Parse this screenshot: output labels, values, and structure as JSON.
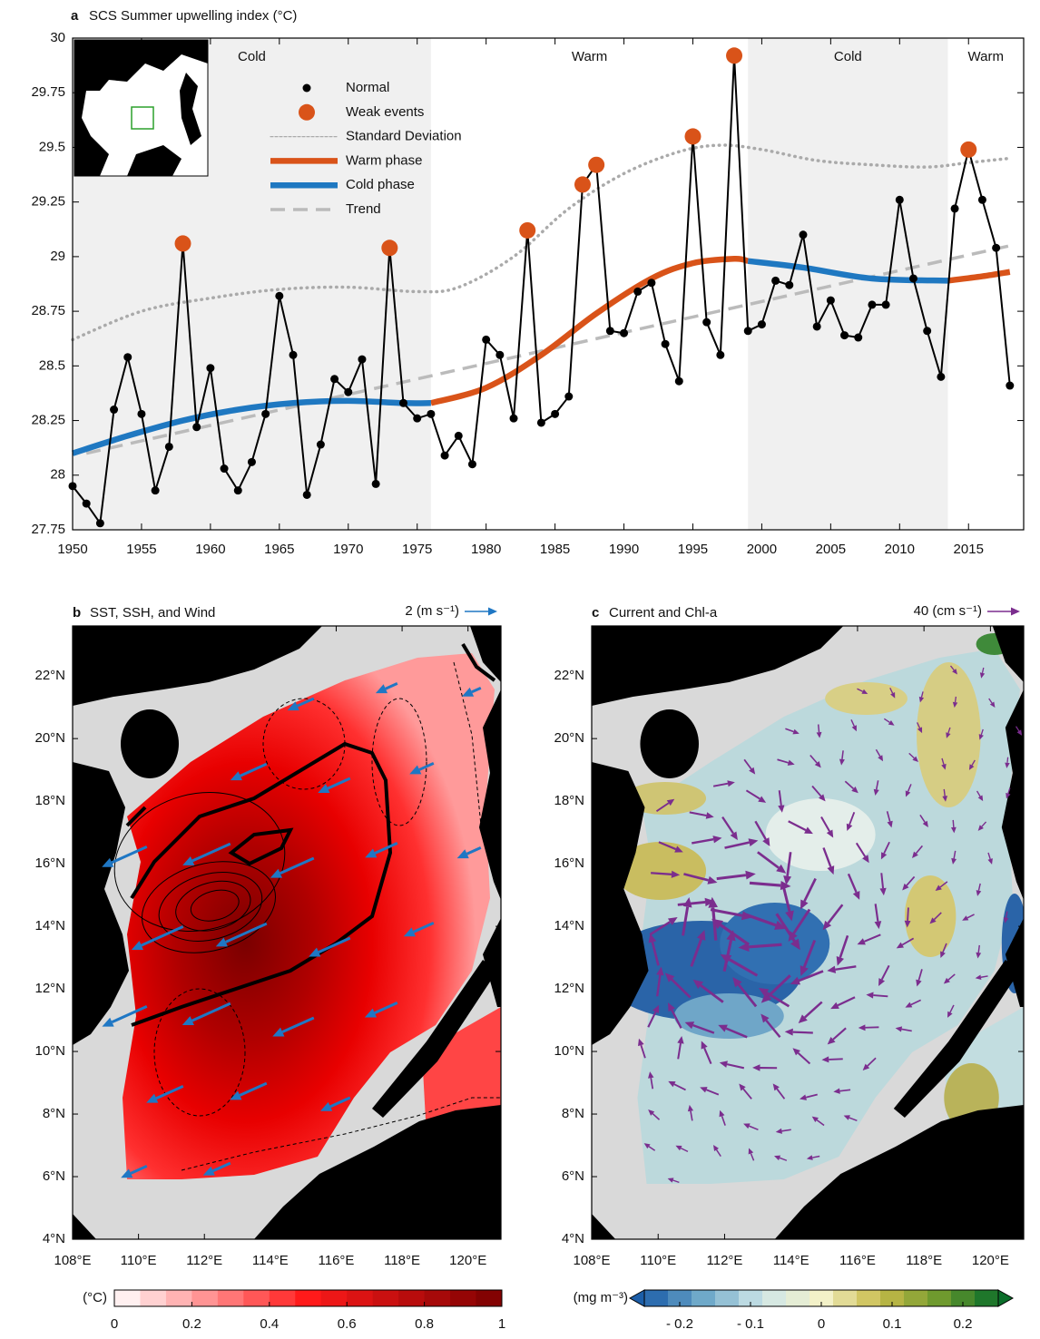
{
  "chart_data": [
    {
      "type": "line",
      "panel_label": "a",
      "title": "SCS Summer upwelling index (°C)",
      "xlim": [
        1950,
        2019
      ],
      "ylim": [
        27.75,
        30
      ],
      "xticks": [
        1950,
        1955,
        1960,
        1965,
        1970,
        1975,
        1980,
        1985,
        1990,
        1995,
        2000,
        2005,
        2010,
        2015
      ],
      "yticks": [
        27.75,
        28,
        28.25,
        28.5,
        28.75,
        29,
        29.25,
        29.5,
        29.75,
        30
      ],
      "phases": [
        {
          "label": "Cold",
          "start": 1950,
          "end": 1976,
          "color": "#1f78c1",
          "background": "#f0f0f0"
        },
        {
          "label": "Warm",
          "start": 1976,
          "end": 1999,
          "color": "#d95319",
          "background": "#ffffff"
        },
        {
          "label": "Cold",
          "start": 1999,
          "end": 2013.5,
          "color": "#1f78c1",
          "background": "#f0f0f0"
        },
        {
          "label": "Warm",
          "start": 2013.5,
          "end": 2019,
          "color": "#d95319",
          "background": "#ffffff"
        }
      ],
      "x": [
        1950,
        1951,
        1952,
        1953,
        1954,
        1955,
        1956,
        1957,
        1958,
        1959,
        1960,
        1961,
        1962,
        1963,
        1964,
        1965,
        1966,
        1967,
        1968,
        1969,
        1970,
        1971,
        1972,
        1973,
        1974,
        1975,
        1976,
        1977,
        1978,
        1979,
        1980,
        1981,
        1982,
        1983,
        1984,
        1985,
        1986,
        1987,
        1988,
        1989,
        1990,
        1991,
        1992,
        1993,
        1994,
        1995,
        1996,
        1997,
        1998,
        1999,
        2000,
        2001,
        2002,
        2003,
        2004,
        2005,
        2006,
        2007,
        2008,
        2009,
        2010,
        2011,
        2012,
        2013,
        2014,
        2015,
        2016,
        2017,
        2018
      ],
      "series": [
        {
          "name": "Normal",
          "color": "#000000",
          "style": "line-markers",
          "values": [
            27.95,
            27.87,
            27.78,
            28.3,
            28.54,
            28.28,
            27.93,
            28.13,
            29.06,
            28.22,
            28.49,
            28.03,
            27.93,
            28.06,
            28.28,
            28.82,
            28.55,
            27.91,
            28.14,
            28.44,
            28.38,
            28.53,
            27.96,
            29.04,
            28.33,
            28.26,
            28.28,
            28.09,
            28.18,
            28.05,
            28.62,
            28.55,
            28.26,
            29.12,
            28.24,
            28.28,
            28.36,
            29.33,
            29.42,
            28.66,
            28.65,
            28.84,
            28.88,
            28.6,
            28.43,
            29.55,
            28.7,
            28.55,
            29.92,
            28.66,
            28.69,
            28.89,
            28.87,
            29.1,
            28.68,
            28.8,
            28.64,
            28.63,
            28.78,
            28.78,
            29.26,
            28.9,
            28.66,
            28.45,
            29.22,
            29.49,
            29.26,
            29.04,
            28.41
          ]
        },
        {
          "name": "Weak events",
          "color": "#d95319",
          "style": "markers",
          "values": [
            null,
            null,
            null,
            null,
            null,
            null,
            null,
            null,
            29.06,
            null,
            null,
            null,
            null,
            null,
            null,
            null,
            null,
            null,
            null,
            null,
            null,
            null,
            null,
            29.04,
            null,
            null,
            null,
            null,
            null,
            null,
            null,
            null,
            null,
            29.12,
            null,
            null,
            null,
            29.33,
            29.42,
            null,
            null,
            null,
            null,
            null,
            null,
            29.55,
            null,
            null,
            29.92,
            null,
            null,
            null,
            null,
            null,
            null,
            null,
            null,
            null,
            null,
            null,
            null,
            null,
            null,
            null,
            null,
            29.49,
            null,
            null,
            null
          ]
        },
        {
          "name": "Standard Deviation",
          "color": "#aaaaaa",
          "style": "dotted",
          "x": [
            1950,
            1955,
            1960,
            1965,
            1970,
            1975,
            1978,
            1982,
            1986,
            1990,
            1994,
            1997,
            2000,
            2004,
            2008,
            2012,
            2015,
            2018
          ],
          "values": [
            28.62,
            28.75,
            28.81,
            28.85,
            28.86,
            28.84,
            28.86,
            29.0,
            29.22,
            29.38,
            29.48,
            29.51,
            29.49,
            29.44,
            29.42,
            29.41,
            29.43,
            29.45
          ]
        },
        {
          "name": "Warm phase",
          "color": "#d95319",
          "style": "thick",
          "x": [
            1950,
            1954,
            1958,
            1962,
            1966,
            1970,
            1974,
            1976,
            1980,
            1984,
            1988,
            1992,
            1995,
            1998,
            1999,
            2003,
            2008,
            2013.5,
            2016,
            2018
          ],
          "values": [
            null,
            null,
            null,
            null,
            null,
            null,
            null,
            28.33,
            28.4,
            28.55,
            28.74,
            28.9,
            28.97,
            28.99,
            28.98,
            null,
            null,
            28.89,
            28.91,
            28.93
          ]
        },
        {
          "name": "Cold phase",
          "color": "#1f78c1",
          "style": "thick",
          "x": [
            1950,
            1954,
            1958,
            1962,
            1966,
            1970,
            1974,
            1976,
            1980,
            1984,
            1988,
            1992,
            1995,
            1998,
            1999,
            2003,
            2008,
            2013.5,
            2016,
            2018
          ],
          "values": [
            28.1,
            28.18,
            28.25,
            28.3,
            28.33,
            28.34,
            28.33,
            28.33,
            null,
            null,
            null,
            null,
            null,
            null,
            28.98,
            28.95,
            28.9,
            28.89,
            null,
            null
          ]
        },
        {
          "name": "Trend",
          "color": "#bbbbbb",
          "style": "dashed",
          "x": [
            1951,
            2018
          ],
          "values": [
            28.1,
            29.05
          ]
        }
      ]
    },
    {
      "type": "map",
      "panel_label": "b",
      "title": "SST, SSH, and Wind",
      "scale_label": "2 (m s⁻¹)",
      "arrow_color": "#1f77c4",
      "xlim": [
        108,
        121
      ],
      "ylim": [
        4,
        23.6
      ],
      "xticks": [
        {
          "value": 108,
          "label": "108°E"
        },
        {
          "value": 110,
          "label": "110°E"
        },
        {
          "value": 112,
          "label": "112°E"
        },
        {
          "value": 114,
          "label": "114°E"
        },
        {
          "value": 116,
          "label": "116°E"
        },
        {
          "value": 118,
          "label": "118°E"
        },
        {
          "value": 120,
          "label": "120°E"
        }
      ],
      "yticks": [
        {
          "value": 4,
          "label": "4°N"
        },
        {
          "value": 6,
          "label": "6°N"
        },
        {
          "value": 8,
          "label": "8°N"
        },
        {
          "value": 10,
          "label": "10°N"
        },
        {
          "value": 12,
          "label": "12°N"
        },
        {
          "value": 14,
          "label": "14°N"
        },
        {
          "value": 16,
          "label": "16°N"
        },
        {
          "value": 18,
          "label": "18°N"
        },
        {
          "value": 20,
          "label": "20°N"
        },
        {
          "value": 22,
          "label": "22°N"
        }
      ],
      "colorbar": {
        "label": "(°C)",
        "lim": [
          0,
          1
        ],
        "ticks": [
          0,
          0.2,
          0.4,
          0.6,
          0.8,
          1
        ],
        "colors": [
          "#ffffff",
          "#ff1a1a",
          "#7a0000"
        ],
        "extend": false
      }
    },
    {
      "type": "map",
      "panel_label": "c",
      "title": "Current and Chl-a",
      "scale_label": "40 (cm s⁻¹)",
      "arrow_color": "#7b2d8e",
      "xlim": [
        108,
        121
      ],
      "ylim": [
        4,
        23.6
      ],
      "xticks": [
        {
          "value": 108,
          "label": "108°E"
        },
        {
          "value": 110,
          "label": "110°E"
        },
        {
          "value": 112,
          "label": "112°E"
        },
        {
          "value": 114,
          "label": "114°E"
        },
        {
          "value": 116,
          "label": "116°E"
        },
        {
          "value": 118,
          "label": "118°E"
        },
        {
          "value": 120,
          "label": "120°E"
        }
      ],
      "yticks": [
        {
          "value": 4,
          "label": "4°N"
        },
        {
          "value": 6,
          "label": "6°N"
        },
        {
          "value": 8,
          "label": "8°N"
        },
        {
          "value": 10,
          "label": "10°N"
        },
        {
          "value": 12,
          "label": "12°N"
        },
        {
          "value": 14,
          "label": "14°N"
        },
        {
          "value": 16,
          "label": "16°N"
        },
        {
          "value": 18,
          "label": "18°N"
        },
        {
          "value": 20,
          "label": "20°N"
        },
        {
          "value": 22,
          "label": "22°N"
        }
      ],
      "colorbar": {
        "label": "(mg m⁻³)",
        "lim": [
          -0.25,
          0.25
        ],
        "ticks": [
          {
            "value": -0.2,
            "label": "- 0.2"
          },
          {
            "value": -0.1,
            "label": "- 0.1"
          },
          0,
          0.1,
          0.2
        ],
        "colors": [
          "#1c5ea8",
          "#6fa9c9",
          "#cfe6e8",
          "#f3f1c8",
          "#c8bb4a",
          "#6f9a2e",
          "#0b6e2a"
        ],
        "extend": true
      }
    }
  ]
}
